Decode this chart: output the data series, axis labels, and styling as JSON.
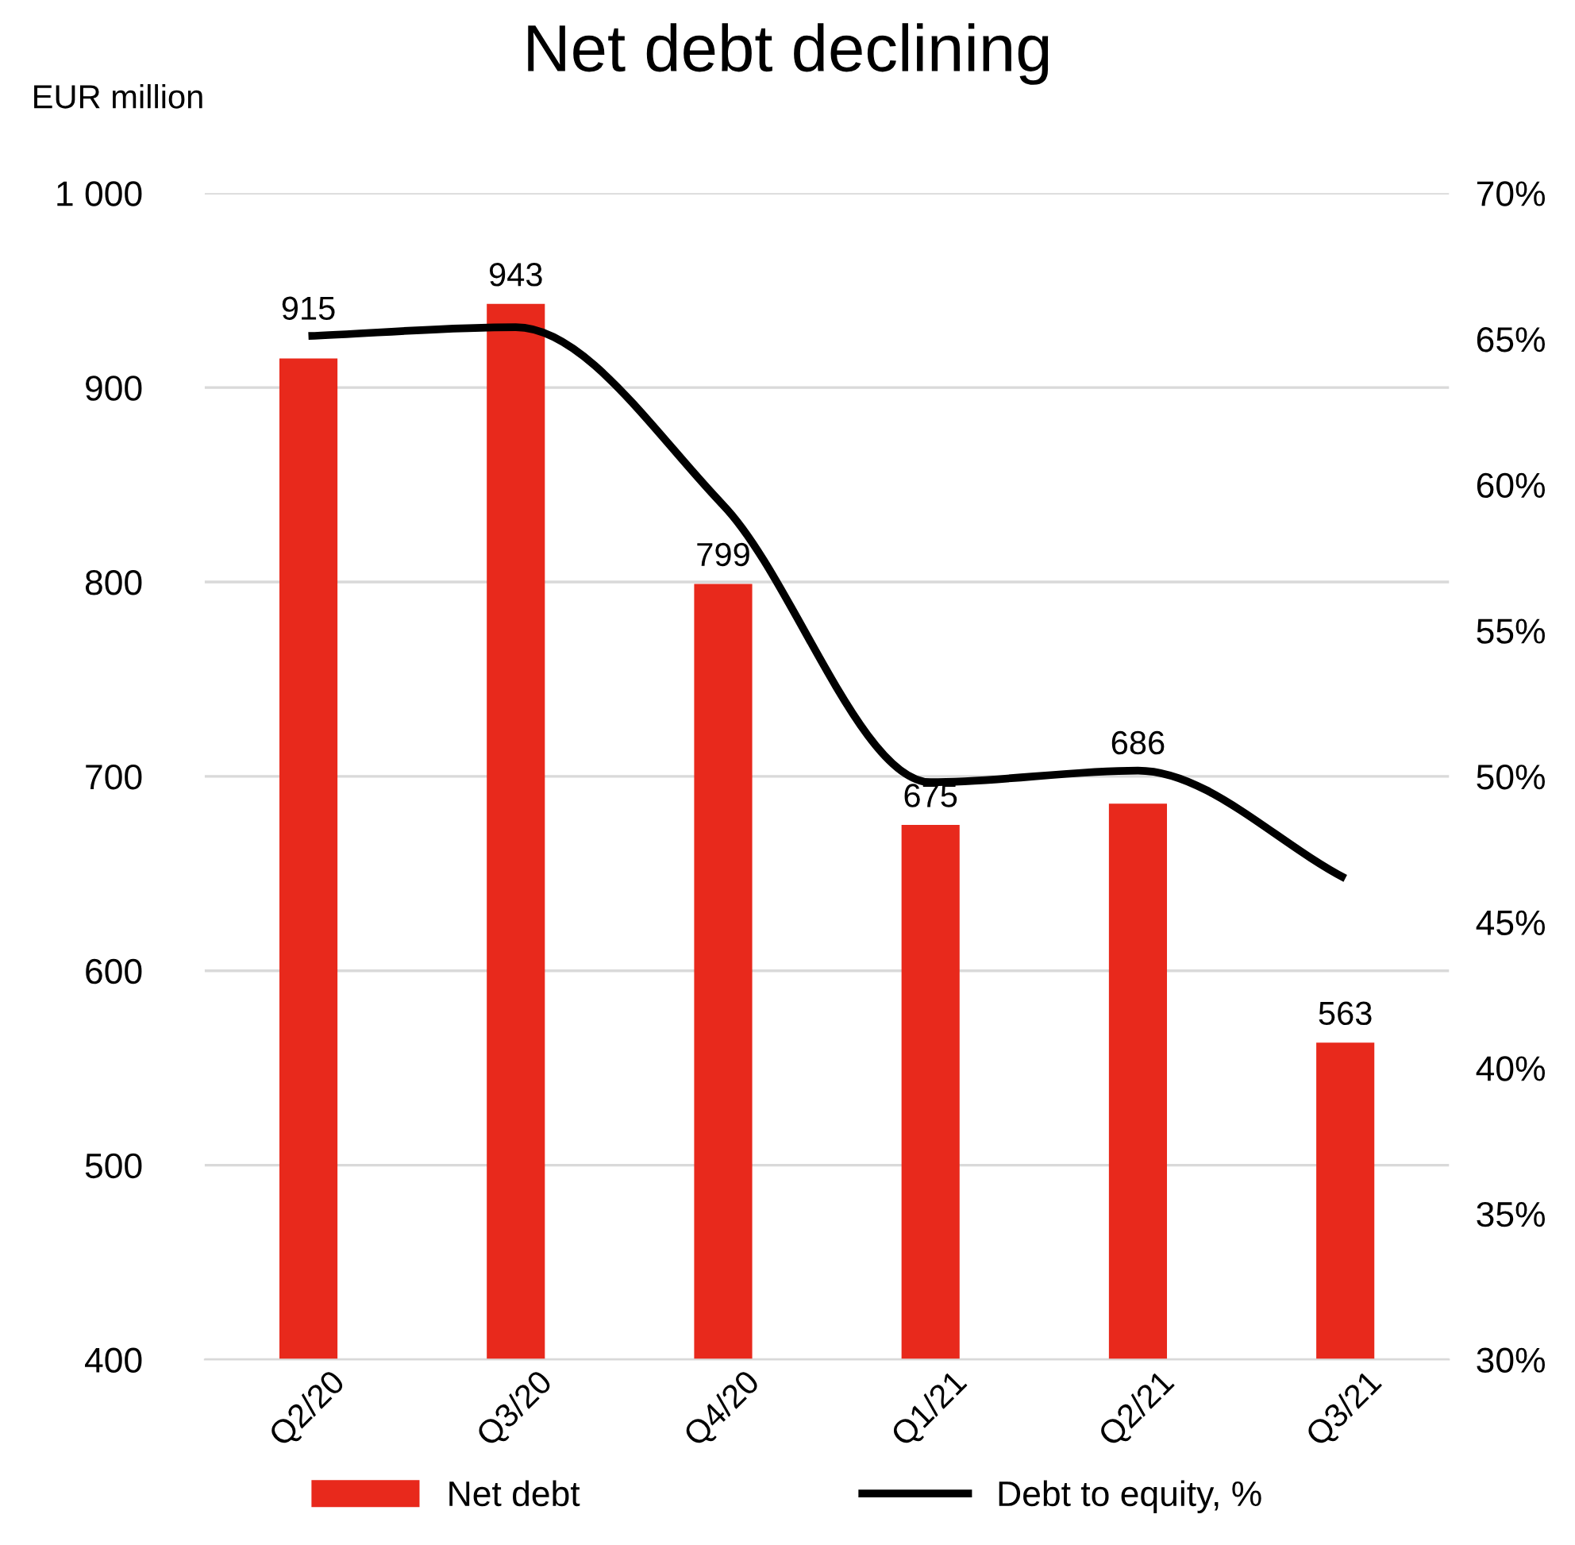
{
  "chart_data": {
    "type": "bar",
    "title": "Net debt declining",
    "ylabel": "EUR million",
    "categories": [
      "Q2/20",
      "Q3/20",
      "Q4/20",
      "Q1/21",
      "Q2/21",
      "Q3/21"
    ],
    "series": [
      {
        "name": "Net debt",
        "color": "#e8291c",
        "values": [
          915,
          943,
          799,
          675,
          686,
          563
        ],
        "value_labels": [
          "915",
          "943",
          "799",
          "675",
          "686",
          "563"
        ]
      },
      {
        "name": "Debt to equity, %",
        "type": "line",
        "axis": "y2",
        "color": "#000000",
        "values": [
          65.1,
          65.4,
          59.3,
          49.8,
          50.2,
          46.5
        ]
      }
    ],
    "ylim": [
      400,
      1000
    ],
    "yticks": [
      400,
      500,
      600,
      700,
      800,
      900,
      {
        "value": 1000,
        "label": "1 000"
      }
    ],
    "y2lim": [
      30,
      70
    ],
    "y2ticks": [
      {
        "value": 30,
        "label": "30%"
      },
      {
        "value": 35,
        "label": "35%"
      },
      {
        "value": 40,
        "label": "40%"
      },
      {
        "value": 45,
        "label": "45%"
      },
      {
        "value": 50,
        "label": "50%"
      },
      {
        "value": 55,
        "label": "55%"
      },
      {
        "value": 60,
        "label": "60%"
      },
      {
        "value": 65,
        "label": "65%"
      },
      {
        "value": 70,
        "label": "70%"
      }
    ],
    "grid": "y",
    "legend": "bottom",
    "marker": "none",
    "line_style": "solid"
  }
}
